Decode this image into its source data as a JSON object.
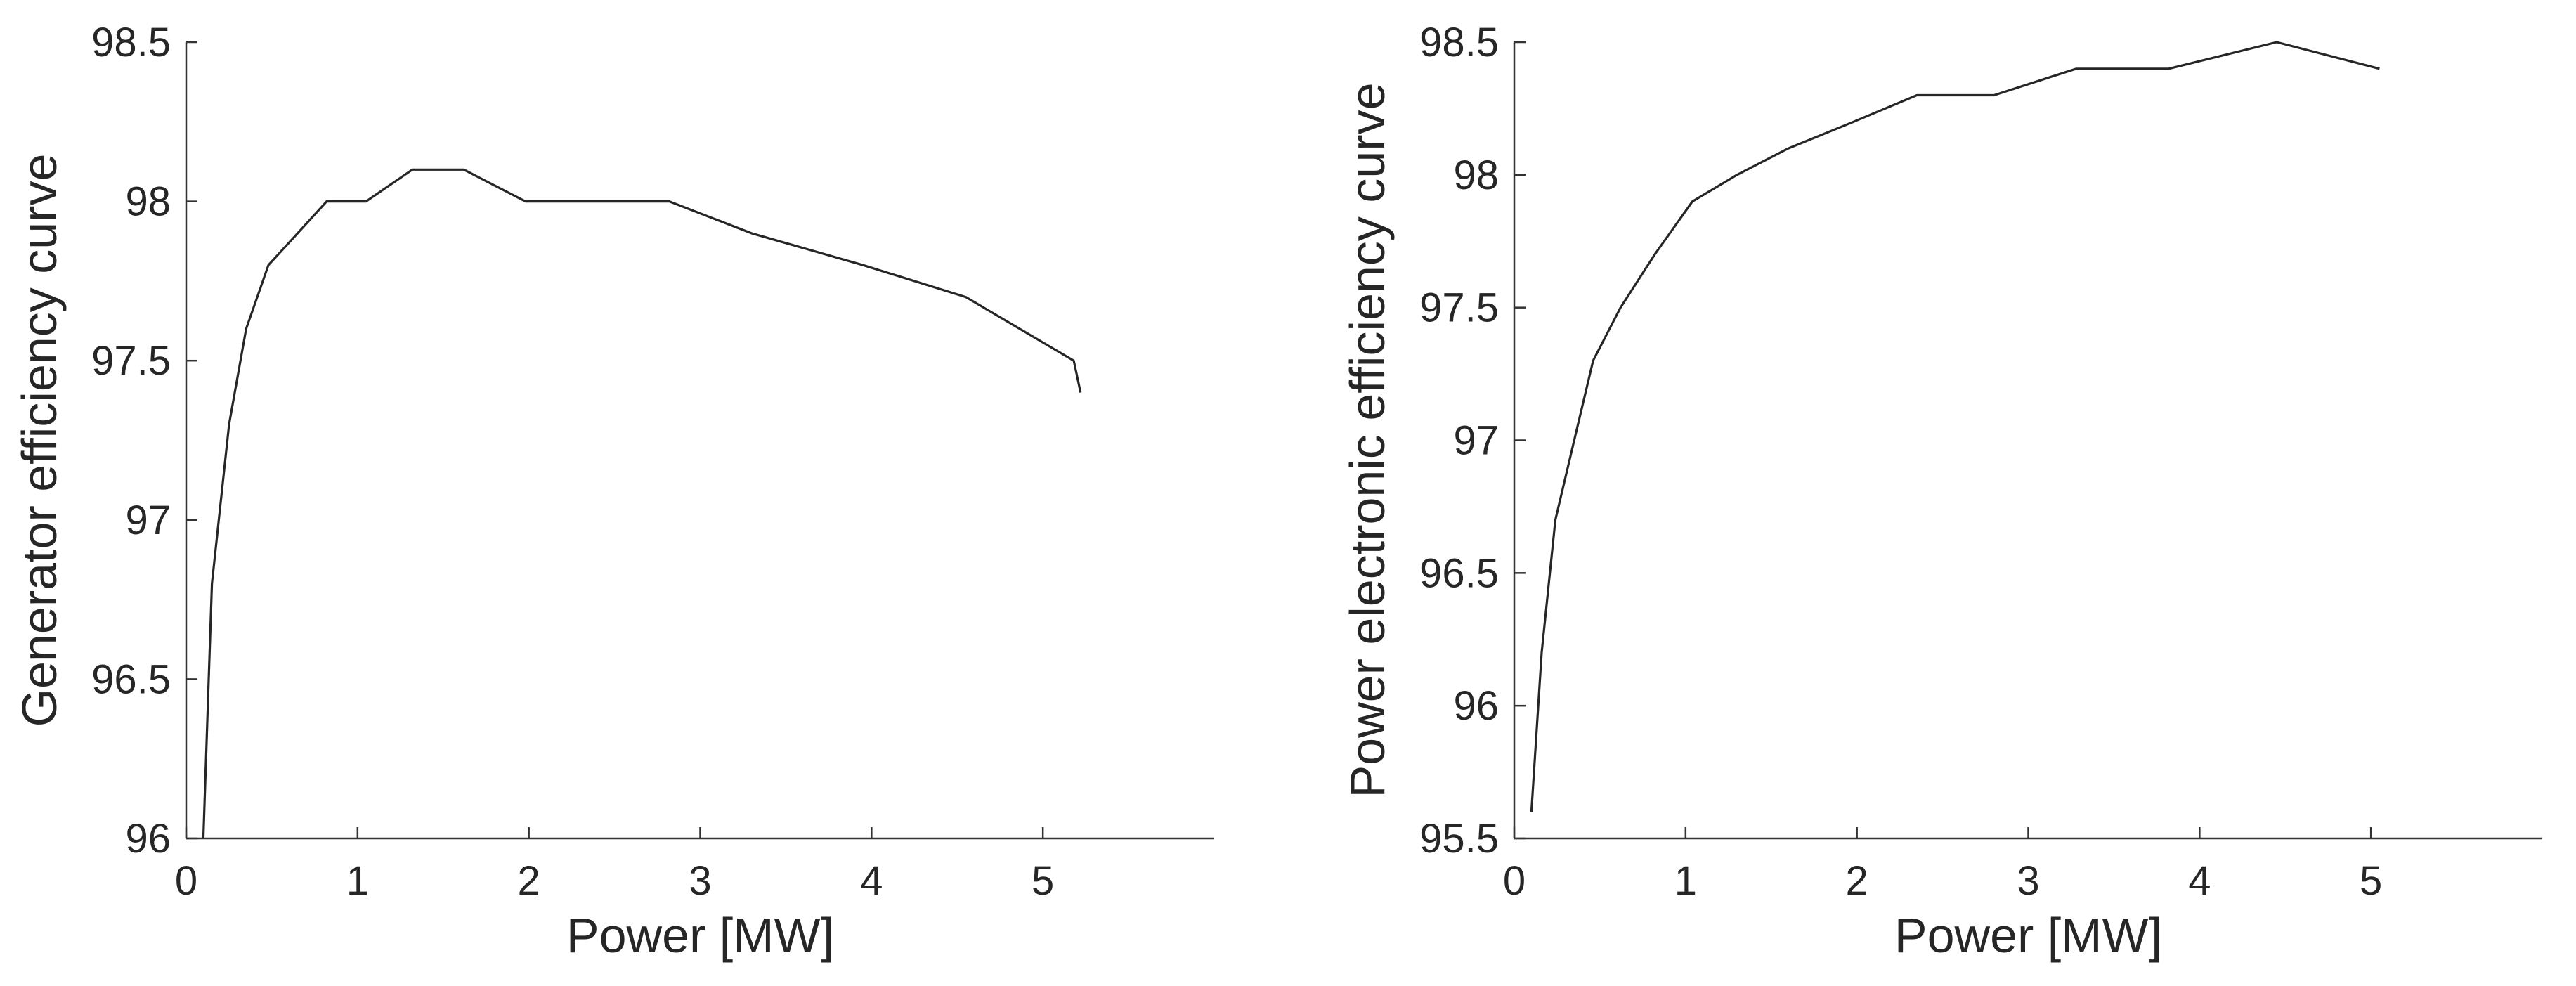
{
  "chart_data": [
    {
      "type": "line",
      "title": "",
      "xlabel": "Power [MW]",
      "ylabel": "Generator efficiency curve",
      "xlim": [
        0,
        6
      ],
      "ylim": [
        96,
        98.5
      ],
      "xticks": [
        0,
        1,
        2,
        3,
        4,
        5
      ],
      "xtick_labels": [
        "0",
        "1",
        "2",
        "3",
        "4",
        "5"
      ],
      "yticks": [
        96,
        96.5,
        97,
        97.5,
        98,
        98.5
      ],
      "ytick_labels": [
        "96",
        "96.5",
        "97",
        "97.5",
        "98",
        "98.5"
      ],
      "grid": false,
      "legend": "none",
      "series": [
        {
          "color": "#262626",
          "x": [
            0.1,
            0.15,
            0.25,
            0.35,
            0.48,
            0.65,
            0.82,
            1.05,
            1.32,
            1.62,
            1.98,
            2.3,
            2.82,
            3.3,
            3.95,
            4.55,
            5.18,
            5.22
          ],
          "y": [
            96.0,
            96.8,
            97.3,
            97.6,
            97.8,
            97.9,
            98.0,
            98.0,
            98.1,
            98.1,
            98.0,
            98.0,
            98.0,
            97.9,
            97.8,
            97.7,
            97.5,
            97.4
          ]
        }
      ]
    },
    {
      "type": "line",
      "title": "",
      "xlabel": "Power [MW]",
      "ylabel": "Power electronic efficiency curve",
      "xlim": [
        0,
        6
      ],
      "ylim": [
        95.5,
        98.5
      ],
      "xticks": [
        0,
        1,
        2,
        3,
        4,
        5
      ],
      "xtick_labels": [
        "0",
        "1",
        "2",
        "3",
        "4",
        "5"
      ],
      "yticks": [
        95.5,
        96,
        96.5,
        97,
        97.5,
        98,
        98.5
      ],
      "ytick_labels": [
        "95.5",
        "96",
        "96.5",
        "97",
        "97.5",
        "98",
        "98.5"
      ],
      "grid": false,
      "legend": "none",
      "series": [
        {
          "color": "#262626",
          "x": [
            0.1,
            0.16,
            0.24,
            0.35,
            0.46,
            0.62,
            0.82,
            1.04,
            1.3,
            1.6,
            1.98,
            2.35,
            2.8,
            3.28,
            3.82,
            4.45,
            5.05
          ],
          "y": [
            95.6,
            96.2,
            96.7,
            97.0,
            97.3,
            97.5,
            97.7,
            97.9,
            98.0,
            98.1,
            98.2,
            98.3,
            98.3,
            98.4,
            98.4,
            98.5,
            98.4
          ]
        }
      ]
    }
  ]
}
